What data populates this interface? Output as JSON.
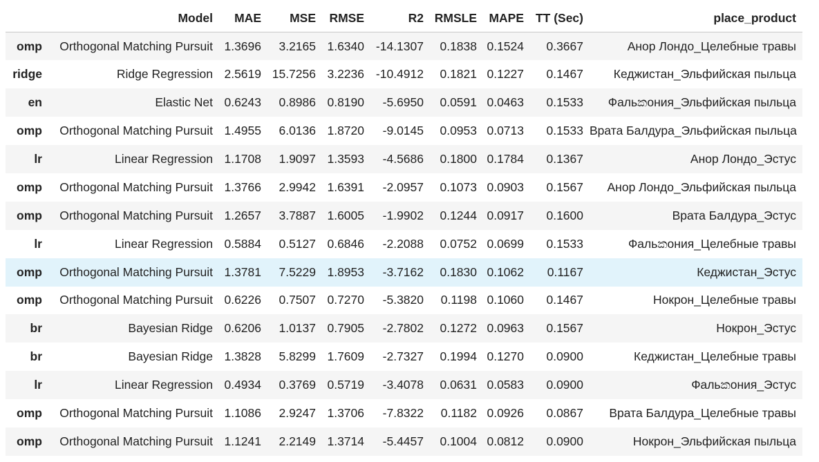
{
  "table": {
    "headers": [
      "",
      "Model",
      "MAE",
      "MSE",
      "RMSE",
      "R2",
      "RMSLE",
      "MAPE",
      "TT (Sec)",
      "place_product"
    ],
    "rows": [
      {
        "index": "omp",
        "model": "Orthogonal Matching Pursuit",
        "mae": "1.3696",
        "mse": "3.2165",
        "rmse": "1.6340",
        "r2": "-14.1307",
        "rmsle": "0.1838",
        "mape": "0.1524",
        "tt": "0.3667",
        "place_product": "Анор Лондо_Целебные травы"
      },
      {
        "index": "ridge",
        "model": "Ridge Regression",
        "mae": "2.5619",
        "mse": "15.7256",
        "rmse": "3.2236",
        "r2": "-10.4912",
        "rmsle": "0.1821",
        "mape": "0.1227",
        "tt": "0.1467",
        "place_product": "Кеджистан_Эльфийская пыльца"
      },
      {
        "index": "en",
        "model": "Elastic Net",
        "mae": "0.6243",
        "mse": "0.8986",
        "rmse": "0.8190",
        "r2": "-5.6950",
        "rmsle": "0.0591",
        "mape": "0.0463",
        "tt": "0.1533",
        "place_product": "Фальකония_Эльфийская пыльца"
      },
      {
        "index": "omp",
        "model": "Orthogonal Matching Pursuit",
        "mae": "1.4955",
        "mse": "6.0136",
        "rmse": "1.8720",
        "r2": "-9.0145",
        "rmsle": "0.0953",
        "mape": "0.0713",
        "tt": "0.1533",
        "place_product": "Врата Балдура_Эльфийская пыльца"
      },
      {
        "index": "lr",
        "model": "Linear Regression",
        "mae": "1.1708",
        "mse": "1.9097",
        "rmse": "1.3593",
        "r2": "-4.5686",
        "rmsle": "0.1800",
        "mape": "0.1784",
        "tt": "0.1367",
        "place_product": "Анор Лондо_Эстус"
      },
      {
        "index": "omp",
        "model": "Orthogonal Matching Pursuit",
        "mae": "1.3766",
        "mse": "2.9942",
        "rmse": "1.6391",
        "r2": "-2.0957",
        "rmsle": "0.1073",
        "mape": "0.0903",
        "tt": "0.1567",
        "place_product": "Анор Лондо_Эльфийская пыльца"
      },
      {
        "index": "omp",
        "model": "Orthogonal Matching Pursuit",
        "mae": "1.2657",
        "mse": "3.7887",
        "rmse": "1.6005",
        "r2": "-1.9902",
        "rmsle": "0.1244",
        "mape": "0.0917",
        "tt": "0.1600",
        "place_product": "Врата Балдура_Эстус"
      },
      {
        "index": "lr",
        "model": "Linear Regression",
        "mae": "0.5884",
        "mse": "0.5127",
        "rmse": "0.6846",
        "r2": "-2.2088",
        "rmsle": "0.0752",
        "mape": "0.0699",
        "tt": "0.1533",
        "place_product": "Фальකония_Целебные травы"
      },
      {
        "index": "omp",
        "model": "Orthogonal Matching Pursuit",
        "mae": "1.3781",
        "mse": "7.5229",
        "rmse": "1.8953",
        "r2": "-3.7162",
        "rmsle": "0.1830",
        "mape": "0.1062",
        "tt": "0.1167",
        "place_product": "Кеджистан_Эстус"
      },
      {
        "index": "omp",
        "model": "Orthogonal Matching Pursuit",
        "mae": "0.6226",
        "mse": "0.7507",
        "rmse": "0.7270",
        "r2": "-5.3820",
        "rmsle": "0.1198",
        "mape": "0.1060",
        "tt": "0.1467",
        "place_product": "Нокрон_Целебные травы"
      },
      {
        "index": "br",
        "model": "Bayesian Ridge",
        "mae": "0.6206",
        "mse": "1.0137",
        "rmse": "0.7905",
        "r2": "-2.7802",
        "rmsle": "0.1272",
        "mape": "0.0963",
        "tt": "0.1567",
        "place_product": "Нокрон_Эстус"
      },
      {
        "index": "br",
        "model": "Bayesian Ridge",
        "mae": "1.3828",
        "mse": "5.8299",
        "rmse": "1.7609",
        "r2": "-2.7327",
        "rmsle": "0.1994",
        "mape": "0.1270",
        "tt": "0.0900",
        "place_product": "Кеджистан_Целебные травы"
      },
      {
        "index": "lr",
        "model": "Linear Regression",
        "mae": "0.4934",
        "mse": "0.3769",
        "rmse": "0.5719",
        "r2": "-3.4078",
        "rmsle": "0.0631",
        "mape": "0.0583",
        "tt": "0.0900",
        "place_product": "Фальකония_Эстус"
      },
      {
        "index": "omp",
        "model": "Orthogonal Matching Pursuit",
        "mae": "1.1086",
        "mse": "2.9247",
        "rmse": "1.3706",
        "r2": "-7.8322",
        "rmsle": "0.1182",
        "mape": "0.0926",
        "tt": "0.0867",
        "place_product": "Врата Балдура_Целебные травы"
      },
      {
        "index": "omp",
        "model": "Orthogonal Matching Pursuit",
        "mae": "1.1241",
        "mse": "2.2149",
        "rmse": "1.3714",
        "r2": "-5.4457",
        "rmsle": "0.1004",
        "mape": "0.0812",
        "tt": "0.0900",
        "place_product": "Нокрон_Эльфийская пыльца"
      }
    ]
  },
  "colors": {
    "odd_row": "#f5f5f5",
    "even_row": "#ffffff",
    "hover_row": "#e1f3fb",
    "text": "#222222"
  }
}
